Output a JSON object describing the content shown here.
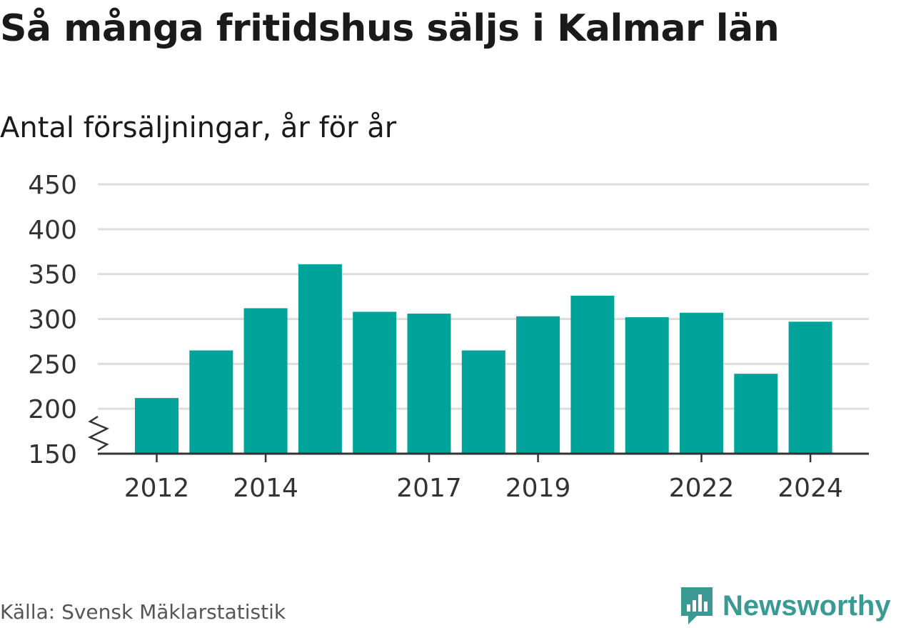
{
  "title": "Så många fritidshus säljs i Kalmar län",
  "subtitle": "Antal försäljningar, år för år",
  "source": "Källa: Svensk Mäklarstatistik",
  "logo_text": "Newsworthy",
  "colors": {
    "bar": "#00a39a",
    "grid": "#dddddd",
    "axis": "#333333",
    "logo": "#3a9a93"
  },
  "chart_data": {
    "type": "bar",
    "categories": [
      "2012",
      "2013",
      "2014",
      "2015",
      "2016",
      "2017",
      "2018",
      "2019",
      "2020",
      "2021",
      "2022",
      "2023",
      "2024"
    ],
    "values": [
      212,
      265,
      312,
      361,
      308,
      306,
      265,
      303,
      326,
      302,
      307,
      239,
      297
    ],
    "xticks": [
      "2012",
      "2014",
      "2017",
      "2019",
      "2022",
      "2024"
    ],
    "yticks": [
      150,
      200,
      250,
      300,
      350,
      400,
      450
    ],
    "ylim": [
      150,
      450
    ],
    "axis_break": true,
    "xlabel": "",
    "ylabel": ""
  }
}
